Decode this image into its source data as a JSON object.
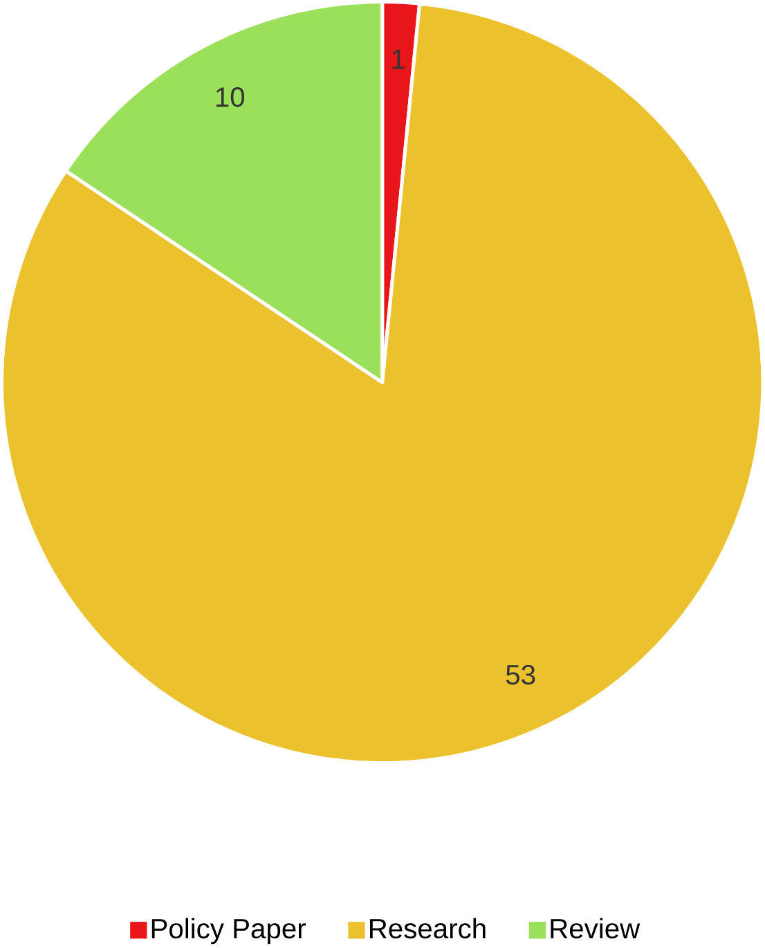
{
  "chart_data": {
    "type": "pie",
    "categories": [
      "Policy Paper",
      "Research",
      "Review"
    ],
    "values": [
      1,
      53,
      10
    ],
    "colors": [
      "#e8161b",
      "#ebc22e",
      "#9be05a"
    ],
    "data_labels": true,
    "legend": "bottom"
  }
}
